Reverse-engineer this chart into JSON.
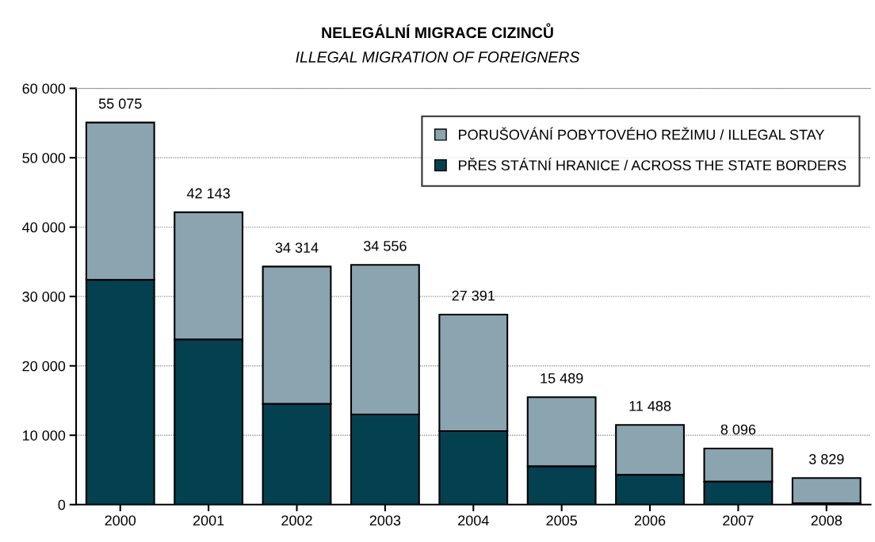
{
  "chart_data": {
    "type": "bar",
    "title": "NELEGÁLNÍ MIGRACE CIZINCŮ",
    "subtitle": "ILLEGAL MIGRATION OF FOREIGNERS",
    "categories": [
      "2000",
      "2001",
      "2002",
      "2003",
      "2004",
      "2005",
      "2006",
      "2007",
      "2008"
    ],
    "stacked": true,
    "series": [
      {
        "name": "PŘES STÁTNÍ HRANICE / ACROSS THE STATE BORDERS",
        "color": "#034150",
        "values": [
          32400,
          23800,
          14500,
          13000,
          10600,
          5500,
          4300,
          3300,
          200
        ]
      },
      {
        "name": "PORUŠOVÁNÍ POBYTOVÉHO REŽIMU / ILLEGAL STAY",
        "color": "#8aa5b0",
        "values": [
          22675,
          18343,
          19814,
          21556,
          16791,
          9989,
          7188,
          4796,
          3629
        ]
      }
    ],
    "totals": [
      "55 075",
      "42 143",
      "34 314",
      "34 556",
      "27 391",
      "15 489",
      "11 488",
      "8 096",
      "3 829"
    ],
    "ylim": [
      0,
      60000
    ],
    "yticks": [
      {
        "value": 0,
        "label": "0"
      },
      {
        "value": 10000,
        "label": "10 000"
      },
      {
        "value": 20000,
        "label": "20 000"
      },
      {
        "value": 30000,
        "label": "30 000"
      },
      {
        "value": 40000,
        "label": "40 000"
      },
      {
        "value": 50000,
        "label": "50 000"
      },
      {
        "value": 60000,
        "label": "60 000"
      }
    ],
    "grid": "y",
    "legend": "top right"
  }
}
